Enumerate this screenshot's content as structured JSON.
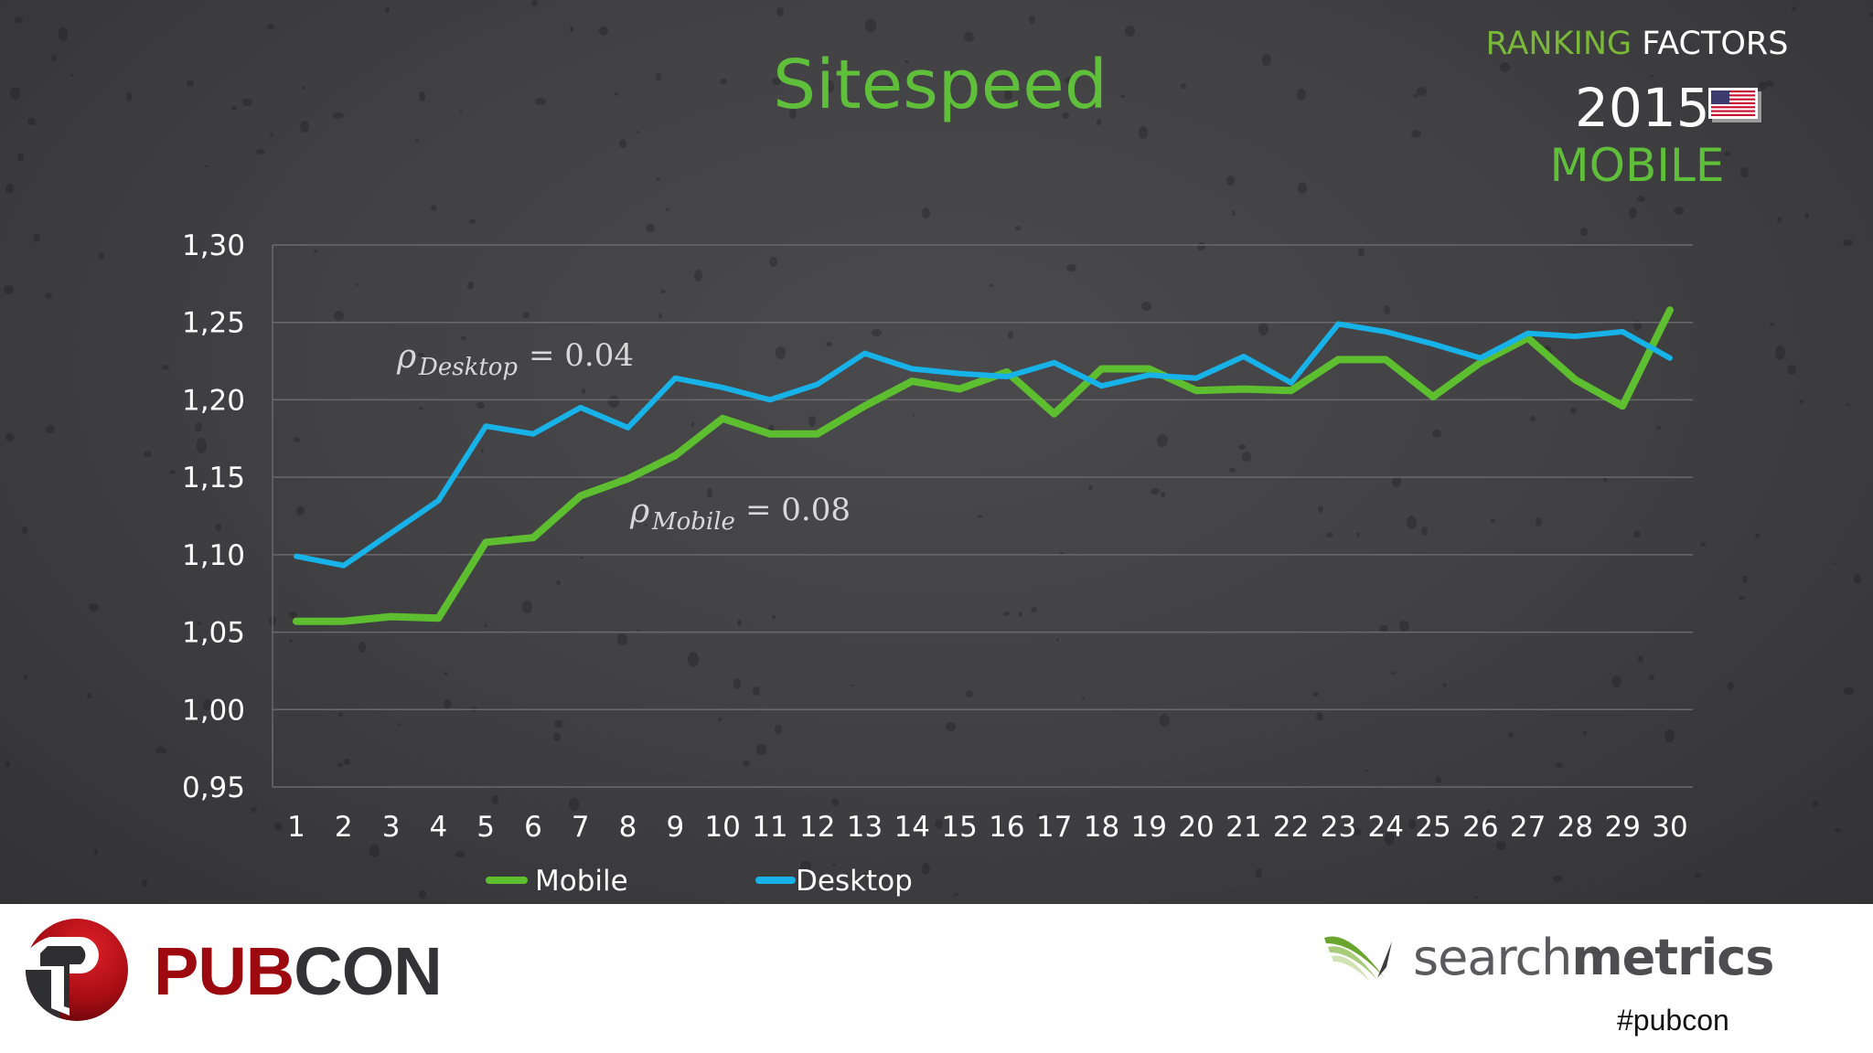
{
  "slide": {
    "title": "Sitespeed",
    "badge": {
      "ranking": "RANKING",
      "factors": "FACTORS",
      "year": "2015",
      "flag": "us-flag-icon",
      "segment": "MOBILE"
    },
    "annotations": {
      "desktop": {
        "symbol": "ρ",
        "subscript": "Desktop",
        "value": "= 0.04"
      },
      "mobile": {
        "symbol": "ρ",
        "subscript": "Mobile",
        "value": "= 0.08"
      }
    }
  },
  "footer": {
    "left_logo": {
      "part1": "PUB",
      "part2": "CON"
    },
    "right_logo": {
      "part1": "search",
      "part2": "metrics"
    },
    "hashtag": "#pubcon"
  },
  "colors": {
    "title_green": "#5fbf3a",
    "ranking_green": "#7ab83a",
    "mobile_series": "#5dbf2f",
    "desktop_series": "#16b2e8",
    "background": "#424244",
    "pubcon_red": "#9c0a10"
  },
  "chart_data": {
    "type": "line",
    "title": "Sitespeed",
    "xlabel": "",
    "ylabel": "",
    "x": [
      1,
      2,
      3,
      4,
      5,
      6,
      7,
      8,
      9,
      10,
      11,
      12,
      13,
      14,
      15,
      16,
      17,
      18,
      19,
      20,
      21,
      22,
      23,
      24,
      25,
      26,
      27,
      28,
      29,
      30
    ],
    "y_ticks": [
      "1,30",
      "1,25",
      "1,20",
      "1,15",
      "1,10",
      "1,05",
      "1,00",
      "0,95"
    ],
    "y_tick_values": [
      1.3,
      1.25,
      1.2,
      1.15,
      1.1,
      1.05,
      1.0,
      0.95
    ],
    "ylim": [
      0.95,
      1.3
    ],
    "grid": true,
    "legend_position": "bottom",
    "series": [
      {
        "name": "Mobile",
        "color": "#5dbf2f",
        "values": [
          1.057,
          1.057,
          1.06,
          1.059,
          1.108,
          1.111,
          1.138,
          1.149,
          1.164,
          1.188,
          1.178,
          1.178,
          1.196,
          1.212,
          1.207,
          1.218,
          1.191,
          1.22,
          1.22,
          1.206,
          1.207,
          1.206,
          1.226,
          1.226,
          1.202,
          1.224,
          1.24,
          1.213,
          1.196,
          1.258
        ]
      },
      {
        "name": "Desktop",
        "color": "#16b2e8",
        "values": [
          1.099,
          1.093,
          1.114,
          1.135,
          1.183,
          1.178,
          1.195,
          1.182,
          1.214,
          1.208,
          1.2,
          1.21,
          1.23,
          1.22,
          1.217,
          1.215,
          1.224,
          1.209,
          1.216,
          1.214,
          1.228,
          1.211,
          1.249,
          1.244,
          1.236,
          1.227,
          1.243,
          1.241,
          1.244,
          1.227
        ]
      }
    ],
    "annotations": [
      "ρDesktop = 0.04",
      "ρMobile = 0.08"
    ]
  }
}
